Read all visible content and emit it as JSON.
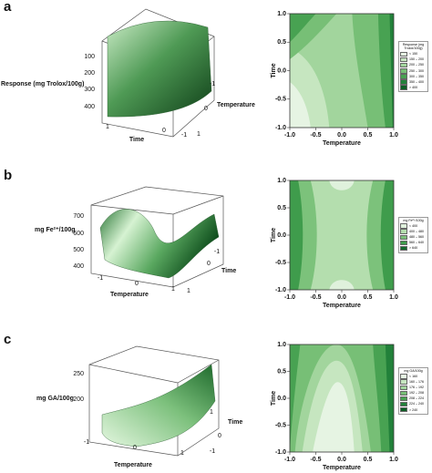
{
  "figure": {
    "panels": [
      {
        "letter": "a",
        "surface": {
          "zlabel": "Response (mg Trolox/100g)",
          "zticks": [
            100,
            200,
            300,
            400
          ],
          "xlabel": "Time",
          "xticks": [
            1,
            0,
            -1
          ],
          "ylabel": "Temperature",
          "yticks": [
            -1,
            0,
            1
          ]
        },
        "contour": {
          "xlabel": "Temperature",
          "ylabel": "Time",
          "xlim": [
            -1,
            1
          ],
          "ylim": [
            -1,
            1
          ],
          "xticks": [
            {
              "value": -1,
              "label": "-1.0"
            },
            {
              "value": -0.5,
              "label": "-0.5"
            },
            {
              "value": 0,
              "label": "0.0"
            },
            {
              "value": 0.5,
              "label": "0.5"
            },
            {
              "value": 1,
              "label": "1.0"
            }
          ],
          "yticks": [
            {
              "value": -1,
              "label": "-1.0"
            },
            {
              "value": -0.5,
              "label": "-0.5"
            },
            {
              "value": 0,
              "label": "0.0"
            },
            {
              "value": 0.5,
              "label": "0.5"
            },
            {
              "value": 1,
              "label": "1.0"
            }
          ],
          "legend": {
            "title": "Response (mg Trolox/100g)",
            "entries": [
              "< 150",
              "150 – 200",
              "200 – 250",
              "250 – 300",
              "300 – 350",
              "350 – 400",
              "> 400"
            ],
            "colors": [
              "#e6f4e3",
              "#c6e6c0",
              "#a2d59d",
              "#77bf76",
              "#48a252",
              "#22813a",
              "#0c5f25"
            ]
          }
        }
      },
      {
        "letter": "b",
        "surface": {
          "zlabel": "mg Fe²⁺/100g",
          "zticks": [
            700,
            600,
            500,
            400
          ],
          "xlabel": "Temperature",
          "xticks": [
            -1,
            0,
            1
          ],
          "ylabel": "Time",
          "yticks": [
            1,
            0,
            -1
          ]
        },
        "contour": {
          "xlabel": "Temperature",
          "ylabel": "Time",
          "xlim": [
            -1,
            1
          ],
          "ylim": [
            -1,
            1
          ],
          "xticks": [
            {
              "value": -1,
              "label": "-1.0"
            },
            {
              "value": -0.5,
              "label": "-0.5"
            },
            {
              "value": 0,
              "label": "0.0"
            },
            {
              "value": 0.5,
              "label": "0.5"
            },
            {
              "value": 1,
              "label": "1.0"
            }
          ],
          "yticks": [
            {
              "value": -1,
              "label": "-1.0"
            },
            {
              "value": -0.5,
              "label": "-0.5"
            },
            {
              "value": 0,
              "label": "0.0"
            },
            {
              "value": 0.5,
              "label": "0.5"
            },
            {
              "value": 1,
              "label": "1.0"
            }
          ],
          "legend": {
            "title": "mg Fe²⁺/100g",
            "entries": [
              "< 400",
              "400 – 480",
              "480 – 560",
              "560 – 640",
              "> 640"
            ],
            "colors": [
              "#dff1dc",
              "#b4deae",
              "#7cc27b",
              "#3f9c4c",
              "#13692c"
            ]
          }
        }
      },
      {
        "letter": "c",
        "surface": {
          "zlabel": "mg GA/100g",
          "zticks": [
            250,
            200
          ],
          "xlabel": "Temperature",
          "xticks": [
            -1,
            0,
            1
          ],
          "ylabel": "Time",
          "yticks": [
            1,
            0,
            -1
          ]
        },
        "contour": {
          "xlabel": "Temperature",
          "ylabel": "Time",
          "xlim": [
            -1,
            1
          ],
          "ylim": [
            -1,
            1
          ],
          "xticks": [
            {
              "value": -1,
              "label": "-1.0"
            },
            {
              "value": -0.5,
              "label": "-0.5"
            },
            {
              "value": 0,
              "label": "0.0"
            },
            {
              "value": 0.5,
              "label": "0.5"
            },
            {
              "value": 1,
              "label": "1.0"
            }
          ],
          "yticks": [
            {
              "value": -1,
              "label": "-1.0"
            },
            {
              "value": -0.5,
              "label": "-0.5"
            },
            {
              "value": 0,
              "label": "0.0"
            },
            {
              "value": 0.5,
              "label": "0.5"
            },
            {
              "value": 1,
              "label": "1.0"
            }
          ],
          "legend": {
            "title": "mg GA/100g",
            "entries": [
              "< 160",
              "160 – 176",
              "176 – 192",
              "192 – 208",
              "208 – 224",
              "224 – 240",
              "> 240"
            ],
            "colors": [
              "#e6f4e3",
              "#c6e6c0",
              "#a2d59d",
              "#77bf76",
              "#48a252",
              "#22813a",
              "#0c5f25"
            ]
          }
        }
      }
    ]
  }
}
